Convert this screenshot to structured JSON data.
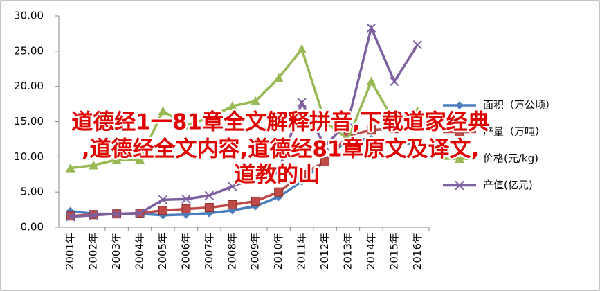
{
  "chart_data": {
    "type": "line",
    "categories": [
      "2001年",
      "2002年",
      "2003年",
      "2004年",
      "2005年",
      "2006年",
      "2007年",
      "2008年",
      "2009年",
      "2010年",
      "2011年",
      "2012年",
      "2013年",
      "2014年",
      "2015年",
      "2016年"
    ],
    "ylim": [
      0,
      30
    ],
    "yticks": [
      {
        "value": 0,
        "label": "0.00"
      },
      {
        "value": 5,
        "label": "5.00"
      },
      {
        "value": 10,
        "label": "10.00"
      },
      {
        "value": 15,
        "label": "15.00"
      },
      {
        "value": 20,
        "label": "20.00"
      },
      {
        "value": 25,
        "label": "25.00"
      },
      {
        "value": 30,
        "label": "30.00"
      }
    ],
    "grid": false,
    "legend": "right",
    "series": [
      {
        "name": "面积（万公顷）",
        "color": "#4a7ebb",
        "marker": "diamond",
        "values": [
          2.3,
          1.9,
          1.9,
          1.9,
          1.7,
          1.8,
          2.0,
          2.4,
          3.0,
          4.3,
          6.5,
          9.5,
          12.5,
          12.5,
          12.0,
          11.7
        ]
      },
      {
        "name": "产量（万吨）",
        "color": "#be4b48",
        "marker": "square",
        "values": [
          1.6,
          1.8,
          1.9,
          2.0,
          2.4,
          2.6,
          2.8,
          3.2,
          3.7,
          5.0,
          7.5,
          9.3,
          13.0,
          13.8,
          14.0,
          14.5
        ]
      },
      {
        "name": "价格(元/kg)",
        "color": "#98b954",
        "marker": "triangle",
        "values": [
          8.4,
          8.8,
          9.6,
          9.6,
          16.5,
          14.5,
          15.5,
          17.2,
          17.9,
          21.2,
          25.3,
          15.0,
          12.5,
          20.7,
          15.0,
          16.5
        ]
      },
      {
        "name": "产值(亿元)",
        "color": "#7d60a0",
        "marker": "x",
        "values": [
          1.5,
          1.7,
          1.9,
          2.0,
          3.9,
          4.0,
          4.5,
          5.8,
          7.0,
          8.0,
          17.7,
          11.5,
          15.0,
          28.3,
          20.7,
          25.9
        ]
      }
    ],
    "overlay_text": [
      "道德经1一81章全文解释拼音,下载道家经典",
      ",道德经全文内容,道德经81章原文及译文,",
      "道教的山"
    ]
  }
}
